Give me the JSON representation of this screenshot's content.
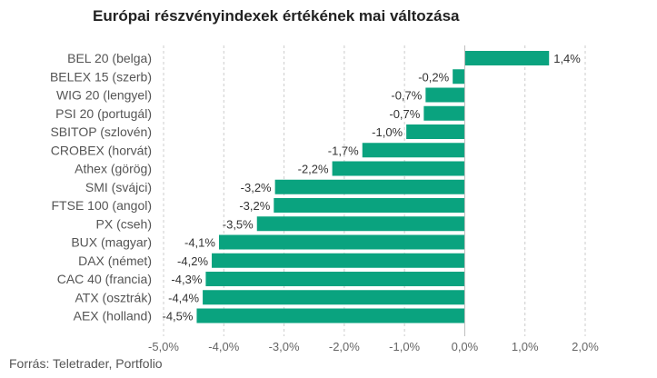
{
  "chart_data": {
    "type": "bar",
    "orientation": "horizontal",
    "title": "Európai részvényindexek értékének mai változása",
    "source": "Forrás: Teletrader, Portfolio",
    "bar_color": "#0aa37f",
    "grid": true,
    "xlim": [
      -5.0,
      2.0
    ],
    "xticks": [
      -5.0,
      -4.0,
      -3.0,
      -2.0,
      -1.0,
      0.0,
      1.0,
      2.0
    ],
    "xtick_labels": [
      "-5,0%",
      "-4,0%",
      "-3,0%",
      "-2,0%",
      "-1,0%",
      "0,0%",
      "1,0%",
      "2,0%"
    ],
    "categories": [
      "BEL 20 (belga)",
      "BELEX 15 (szerb)",
      "WIG 20 (lengyel)",
      "PSI 20 (portugál)",
      "SBITOP (szlovén)",
      "CROBEX (horvát)",
      "Athex (görög)",
      "SMI (svájci)",
      "FTSE 100 (angol)",
      "PX (cseh)",
      "BUX (magyar)",
      "DAX (német)",
      "CAC 40 (francia)",
      "ATX (osztrák)",
      "AEX (holland)"
    ],
    "values": [
      1.4,
      -0.2,
      -0.65,
      -0.68,
      -0.97,
      -1.7,
      -2.2,
      -3.15,
      -3.17,
      -3.45,
      -4.08,
      -4.2,
      -4.3,
      -4.35,
      -4.45
    ],
    "value_labels": [
      "1,4%",
      "-0,2%",
      "-0,7%",
      "-0,7%",
      "-1,0%",
      "-1,7%",
      "-2,2%",
      "-3,2%",
      "-3,2%",
      "-3,5%",
      "-4,1%",
      "-4,2%",
      "-4,3%",
      "-4,4%",
      "-4,5%"
    ]
  }
}
